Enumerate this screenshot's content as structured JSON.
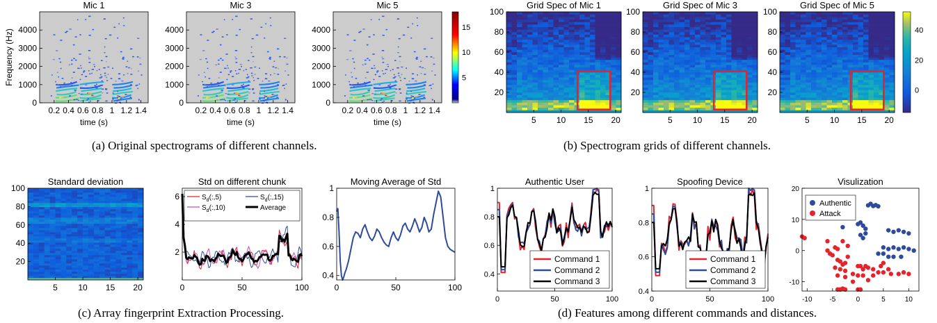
{
  "figure": {
    "captions": {
      "a": "(a)  Original spectrograms of different channels.",
      "b": "(b)  Spectrogram grids of different channels.",
      "c": "(c)  Array fingerprint Extraction Processing.",
      "d": "(d)  Features among different commands and distances."
    }
  },
  "colors": {
    "parula_low": "#352a87",
    "parula_mid": "#1ebab3",
    "parula_high": "#f9fb0e",
    "jet_low": "#00008f",
    "jet_high": "#800000",
    "background_gray": "#cccccc",
    "box_red": "#e3242b"
  },
  "chart_data": [
    {
      "id": "mic1",
      "type": "heatmap",
      "title": "Mic 1",
      "xlabel": "time (s)",
      "ylabel": "Frequency (Hz)",
      "xticks": [
        "0.2",
        "0.4",
        "0.6",
        "0.8",
        "1",
        "1.2",
        "1.4"
      ],
      "yticks": [
        "0",
        "1000",
        "2000",
        "3000",
        "4000"
      ],
      "xlim": [
        0,
        1.5
      ],
      "ylim": [
        0,
        5000
      ]
    },
    {
      "id": "mic3",
      "type": "heatmap",
      "title": "Mic 3",
      "xlabel": "time (s)",
      "ylabel": "",
      "xticks": [
        "0.2",
        "0.4",
        "0.6",
        "0.8",
        "1",
        "1.2",
        "1.4"
      ],
      "yticks": [
        "0",
        "1000",
        "2000",
        "3000",
        "4000"
      ],
      "xlim": [
        0,
        1.5
      ],
      "ylim": [
        0,
        5000
      ]
    },
    {
      "id": "mic5",
      "type": "heatmap",
      "title": "Mic 5",
      "xlabel": "time (s)",
      "ylabel": "",
      "xticks": [
        "0.2",
        "0.4",
        "0.6",
        "0.8",
        "1",
        "1.2",
        "1.4"
      ],
      "yticks": [
        "0",
        "1000",
        "2000",
        "3000",
        "4000"
      ],
      "xlim": [
        0,
        1.5
      ],
      "ylim": [
        0,
        5000
      ]
    },
    {
      "id": "cbar_a",
      "type": "colorbar",
      "ticks": [
        "5",
        "10",
        "15"
      ],
      "range": [
        0,
        18
      ],
      "map": "jet"
    },
    {
      "id": "grid1",
      "type": "heatmap",
      "title": "Grid Spec of Mic 1",
      "xticks": [
        "5",
        "10",
        "15",
        "20"
      ],
      "yticks": [
        "20",
        "40",
        "60",
        "80",
        "100"
      ],
      "xlim": [
        0,
        21
      ],
      "ylim": [
        0,
        100
      ],
      "highlight": {
        "x": [
          13,
          19
        ],
        "y": [
          3,
          41
        ]
      }
    },
    {
      "id": "grid3",
      "type": "heatmap",
      "title": "Grid Spec of Mic 3",
      "xticks": [
        "5",
        "10",
        "15",
        "20"
      ],
      "yticks": [
        "20",
        "40",
        "60",
        "80",
        "100"
      ],
      "xlim": [
        0,
        21
      ],
      "ylim": [
        0,
        100
      ],
      "highlight": {
        "x": [
          13,
          19
        ],
        "y": [
          3,
          41
        ]
      }
    },
    {
      "id": "grid5",
      "type": "heatmap",
      "title": "Grid Spec of Mic 5",
      "xticks": [
        "5",
        "10",
        "15",
        "20"
      ],
      "yticks": [
        "20",
        "40",
        "60",
        "80",
        "100"
      ],
      "xlim": [
        0,
        21
      ],
      "ylim": [
        0,
        100
      ],
      "highlight": {
        "x": [
          13,
          19
        ],
        "y": [
          3,
          41
        ]
      }
    },
    {
      "id": "cbar_b",
      "type": "colorbar",
      "ticks": [
        "40",
        "20",
        "0"
      ],
      "tick_values": [
        40,
        20,
        0
      ],
      "range": [
        -15,
        52
      ],
      "map": "parula"
    },
    {
      "id": "std",
      "type": "heatmap",
      "title": "Standard deviation",
      "xticks": [
        "5",
        "10",
        "15",
        "20"
      ],
      "yticks": [
        "20",
        "40",
        "60",
        "80",
        "100"
      ],
      "xlim": [
        0,
        21
      ],
      "ylim": [
        0,
        100
      ]
    },
    {
      "id": "chunk",
      "type": "line",
      "title": "Std on different chunk",
      "xticks": [
        "0",
        "50",
        "100"
      ],
      "yticks": [
        "2",
        "4",
        "6"
      ],
      "xlim": [
        0,
        100
      ],
      "ylim": [
        0,
        6.6
      ],
      "legend": [
        {
          "name": "S",
          "sub": "d",
          "arg": "(:,5)",
          "color": "#e3242b"
        },
        {
          "name": "S",
          "sub": "d",
          "arg": "(:,15)",
          "color": "#2e4b9b"
        },
        {
          "name": "S",
          "sub": "d",
          "arg": "(:,10)",
          "color": "#c64fbf"
        },
        {
          "name": "Average",
          "color": "#000000"
        }
      ]
    },
    {
      "id": "movavg",
      "type": "line",
      "title": "Moving Average of Std",
      "xticks": [
        "0",
        "50",
        "100"
      ],
      "yticks": [
        "0.4",
        "0.6",
        "0.8",
        "1"
      ],
      "xlim": [
        0,
        100
      ],
      "ylim": [
        0.37,
        1.0
      ],
      "series": [
        {
          "color": "#2e4b9b",
          "x": [
            0,
            1,
            2,
            3,
            4,
            5,
            6,
            7,
            8,
            10,
            12,
            14,
            16,
            18,
            20,
            22,
            24,
            26,
            28,
            30,
            32,
            34,
            36,
            38,
            40,
            42,
            44,
            46,
            48,
            50,
            52,
            54,
            56,
            58,
            60,
            62,
            64,
            66,
            68,
            70,
            72,
            74,
            76,
            78,
            80,
            82,
            84,
            86,
            88,
            90,
            92,
            94,
            96,
            98,
            100
          ],
          "y": [
            0.84,
            0.86,
            0.7,
            0.5,
            0.4,
            0.37,
            0.39,
            0.42,
            0.44,
            0.5,
            0.58,
            0.66,
            0.7,
            0.69,
            0.66,
            0.72,
            0.75,
            0.7,
            0.66,
            0.64,
            0.67,
            0.72,
            0.7,
            0.66,
            0.63,
            0.61,
            0.6,
            0.66,
            0.7,
            0.66,
            0.64,
            0.68,
            0.74,
            0.76,
            0.72,
            0.7,
            0.74,
            0.79,
            0.75,
            0.7,
            0.73,
            0.8,
            0.76,
            0.7,
            0.72,
            0.82,
            0.9,
            0.98,
            0.94,
            0.8,
            0.66,
            0.6,
            0.58,
            0.57,
            0.56
          ]
        }
      ]
    },
    {
      "id": "auth",
      "type": "line",
      "title": "Authentic User",
      "xticks": [
        "0",
        "50",
        "100"
      ],
      "yticks": [
        "0.4",
        "0.6",
        "0.8",
        "1"
      ],
      "xlim": [
        0,
        100
      ],
      "ylim": [
        0.28,
        1.0
      ],
      "legend": [
        {
          "name": "Command 1",
          "color": "#e3242b"
        },
        {
          "name": "Command 2",
          "color": "#2e4b9b"
        },
        {
          "name": "Command 3",
          "color": "#000000"
        }
      ]
    },
    {
      "id": "spoof",
      "type": "line",
      "title": "Spoofing Device",
      "xticks": [
        "0",
        "50",
        "100"
      ],
      "yticks": [
        "0.4",
        "0.6",
        "0.8",
        "1"
      ],
      "xlim": [
        0,
        100
      ],
      "ylim": [
        0.4,
        1.0
      ],
      "legend": [
        {
          "name": "Command 1",
          "color": "#e3242b"
        },
        {
          "name": "Command 2",
          "color": "#2e4b9b"
        },
        {
          "name": "Command 3",
          "color": "#000000"
        }
      ]
    },
    {
      "id": "viz",
      "type": "scatter",
      "title": "Visulization",
      "xticks": [
        "-10",
        "-5",
        "0",
        "5",
        "10"
      ],
      "yticks": [
        "-10",
        "0",
        "10",
        "20"
      ],
      "xlim": [
        -11,
        12
      ],
      "ylim": [
        -13,
        20
      ],
      "series": [
        {
          "name": "Authentic",
          "color": "#2e4b9b",
          "points": [
            [
              2,
              14.5
            ],
            [
              3,
              14.3
            ],
            [
              3.5,
              14.6
            ],
            [
              4,
              14.2
            ],
            [
              2.5,
              15
            ],
            [
              0.5,
              9
            ],
            [
              1,
              8
            ],
            [
              1.5,
              7
            ],
            [
              0,
              8.5
            ],
            [
              -3,
              7.5
            ],
            [
              0.5,
              5
            ],
            [
              1,
              4
            ],
            [
              1.5,
              5.5
            ],
            [
              6,
              6.5
            ],
            [
              7,
              6
            ],
            [
              8,
              6.5
            ],
            [
              9,
              6
            ],
            [
              10,
              5.5
            ],
            [
              5,
              1
            ],
            [
              6,
              0.5
            ],
            [
              7,
              1
            ],
            [
              8,
              0.5
            ],
            [
              9,
              1
            ],
            [
              10,
              0.5
            ],
            [
              11,
              0
            ],
            [
              6,
              -2
            ],
            [
              7,
              -2
            ],
            [
              8.5,
              -2
            ],
            [
              4,
              -1
            ],
            [
              5,
              -1
            ]
          ]
        },
        {
          "name": "Attack",
          "color": "#e3242b",
          "points": [
            [
              -11,
              4.5
            ],
            [
              -10.5,
              4
            ],
            [
              -6,
              3
            ],
            [
              -6,
              0
            ],
            [
              -5.5,
              -1
            ],
            [
              -5,
              -1.5
            ],
            [
              -4.5,
              1
            ],
            [
              -4,
              0.5
            ],
            [
              -3,
              3
            ],
            [
              -2,
              1.5
            ],
            [
              -2,
              -2
            ],
            [
              -4,
              -3
            ],
            [
              -3.5,
              -3.5
            ],
            [
              -3,
              -4.5
            ],
            [
              -2.5,
              -4
            ],
            [
              -4.5,
              -5.5
            ],
            [
              -3.5,
              -6
            ],
            [
              -2.5,
              -6.5
            ],
            [
              -4,
              -8
            ],
            [
              -2.5,
              -8.5
            ],
            [
              0,
              -5
            ],
            [
              0.5,
              -5
            ],
            [
              1,
              -6
            ],
            [
              1.5,
              -5
            ],
            [
              2,
              -5.5
            ],
            [
              3,
              -6
            ],
            [
              4,
              -7
            ],
            [
              4.5,
              -5
            ],
            [
              5,
              -4
            ],
            [
              5,
              -7
            ],
            [
              6,
              -6
            ],
            [
              6.5,
              -7.5
            ],
            [
              -1,
              -7.5
            ],
            [
              0,
              -8
            ],
            [
              1,
              -8
            ],
            [
              2,
              -9.5
            ],
            [
              3,
              -8
            ],
            [
              8,
              -7.5
            ],
            [
              9,
              -7
            ],
            [
              10,
              -7.5
            ],
            [
              -4,
              -12.5
            ],
            [
              -3.5,
              -12.5
            ],
            [
              -3,
              -12.2
            ],
            [
              -2.5,
              -12.5
            ],
            [
              0,
              -12.5
            ],
            [
              0.5,
              -12.5
            ],
            [
              -1,
              -10
            ]
          ]
        }
      ]
    }
  ]
}
